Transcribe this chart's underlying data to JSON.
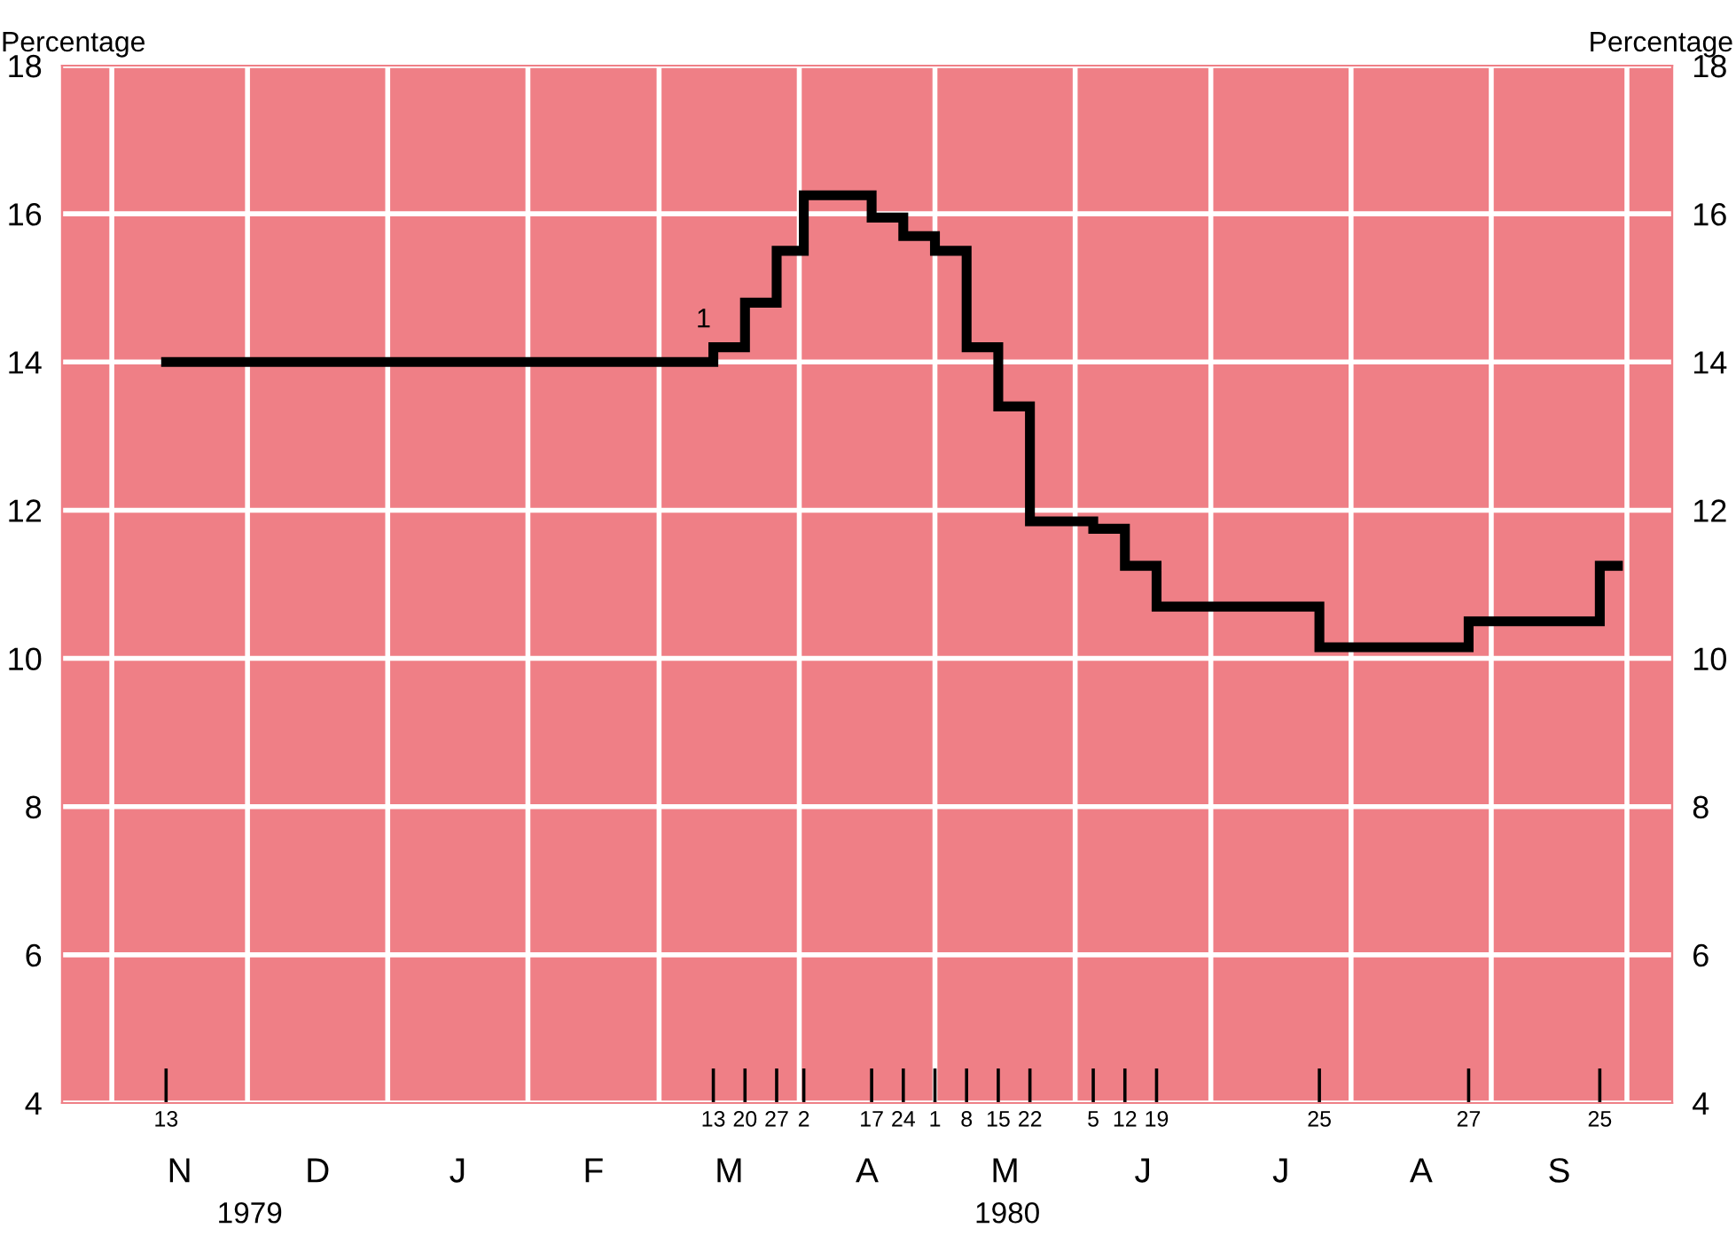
{
  "chart_data": {
    "type": "step",
    "ylabel": "Percentage",
    "y2label": "Percentage",
    "x": [
      "1979-11-13",
      "1980-03-13",
      "1980-03-20",
      "1980-03-27",
      "1980-04-02",
      "1980-04-17",
      "1980-04-24",
      "1980-05-01",
      "1980-05-08",
      "1980-05-15",
      "1980-05-22",
      "1980-06-05",
      "1980-06-12",
      "1980-06-19",
      "1980-07-25",
      "1980-08-27",
      "1980-09-25",
      "1980-09-29"
    ],
    "series": [
      {
        "color": "#000000",
        "values": [
          14.0,
          14.2,
          14.8,
          15.5,
          16.25,
          15.95,
          15.7,
          15.5,
          14.2,
          13.4,
          11.85,
          11.75,
          11.25,
          10.7,
          10.15,
          10.5,
          11.25,
          11.25
        ]
      }
    ],
    "annotations": [
      {
        "text": "1",
        "x": "1980-03-13",
        "y": 14.2
      },
      "N",
      "D",
      "J",
      "F",
      "M",
      "A",
      "M",
      "J",
      "J",
      "A",
      "S",
      "1979",
      "1980"
    ],
    "xlim": [
      "1979-10-21",
      "1980-10-11"
    ],
    "xticks": [
      {
        "value": "1979-11-01",
        "label": null
      },
      {
        "value": "1979-12-01",
        "label": null
      },
      {
        "value": "1980-01-01",
        "label": null
      },
      {
        "value": "1980-02-01",
        "label": null
      },
      {
        "value": "1980-03-01",
        "label": null
      },
      {
        "value": "1980-04-01",
        "label": null
      },
      {
        "value": "1980-05-01",
        "label": null
      },
      {
        "value": "1980-06-01",
        "label": null
      },
      {
        "value": "1980-07-01",
        "label": null
      },
      {
        "value": "1980-08-01",
        "label": null
      },
      {
        "value": "1980-09-01",
        "label": null
      },
      {
        "value": "1980-10-01",
        "label": null
      },
      {
        "value": "1979-11-13",
        "label": "13"
      },
      {
        "value": "1980-03-13",
        "label": "13"
      },
      {
        "value": "1980-03-20",
        "label": "20"
      },
      {
        "value": "1980-03-27",
        "label": "27"
      },
      {
        "value": "1980-04-02",
        "label": "2"
      },
      {
        "value": "1980-04-17",
        "label": "17"
      },
      {
        "value": "1980-04-24",
        "label": "24"
      },
      {
        "value": "1980-05-01",
        "label": "1"
      },
      {
        "value": "1980-05-08",
        "label": "8"
      },
      {
        "value": "1980-05-15",
        "label": "15"
      },
      {
        "value": "1980-05-22",
        "label": "22"
      },
      {
        "value": "1980-06-05",
        "label": "5"
      },
      {
        "value": "1980-06-12",
        "label": "12"
      },
      {
        "value": "1980-06-19",
        "label": "19"
      },
      {
        "value": "1980-07-25",
        "label": "25"
      },
      {
        "value": "1980-08-27",
        "label": "27"
      },
      {
        "value": "1980-09-25",
        "label": "25"
      }
    ],
    "ylim": [
      4,
      18
    ],
    "yticks": [
      4,
      6,
      8,
      10,
      12,
      14,
      16,
      18
    ],
    "y2lim": [
      4,
      18
    ],
    "y2ticks": [
      4,
      6,
      8,
      10,
      12,
      14,
      16,
      18
    ],
    "grid": true,
    "line_style": "solid"
  }
}
